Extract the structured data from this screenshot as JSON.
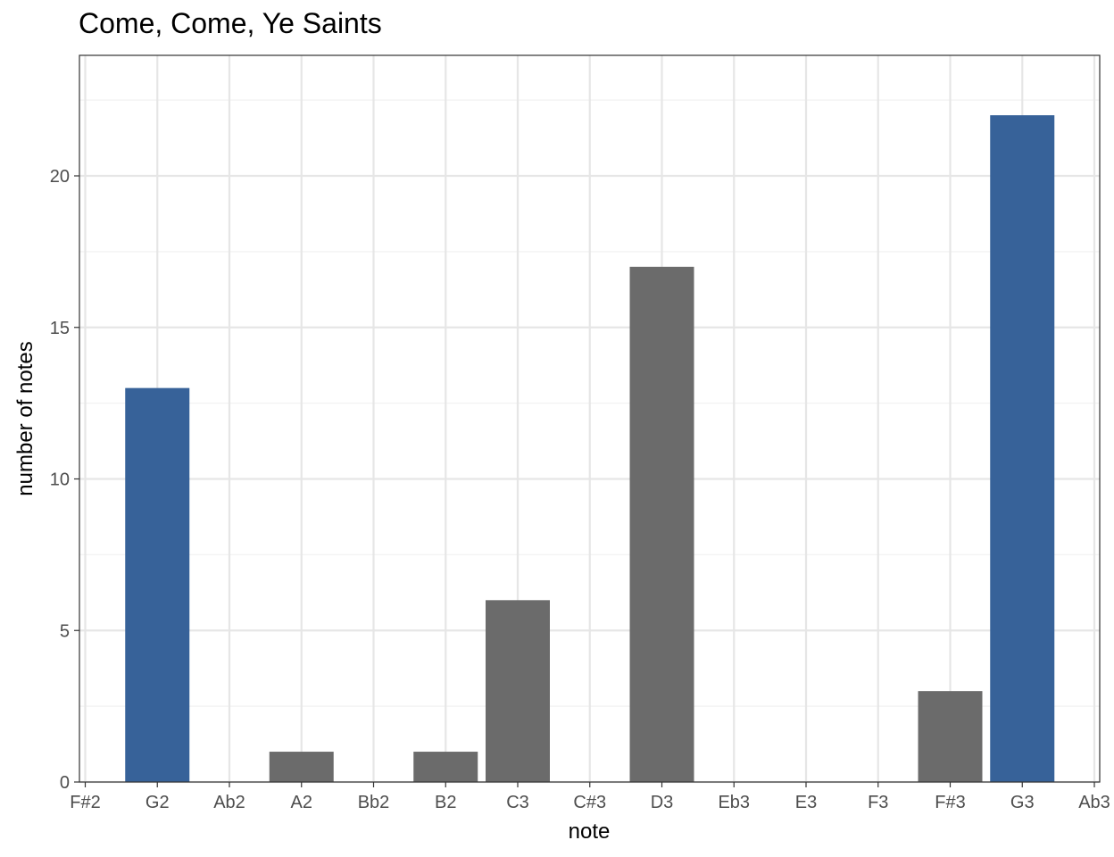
{
  "chart_data": {
    "type": "bar",
    "title": "Come, Come, Ye Saints",
    "xlabel": "note",
    "ylabel": "number of notes",
    "categories": [
      "F#2",
      "G2",
      "Ab2",
      "A2",
      "Bb2",
      "B2",
      "C3",
      "C#3",
      "D3",
      "Eb3",
      "E3",
      "F3",
      "F#3",
      "G3",
      "Ab3"
    ],
    "values": [
      0,
      13,
      0,
      1,
      0,
      1,
      6,
      0,
      17,
      0,
      0,
      0,
      3,
      22,
      0
    ],
    "highlighted": [
      false,
      true,
      false,
      false,
      false,
      false,
      false,
      false,
      false,
      false,
      false,
      false,
      false,
      true,
      false
    ],
    "y_ticks": [
      0,
      5,
      10,
      15,
      20
    ],
    "ylim": [
      0,
      24
    ],
    "grid": true,
    "legend": "none",
    "colors": {
      "bar_default": "#6b6b6b",
      "bar_highlight": "#376299",
      "grid_major": "#e6e6e6",
      "grid_minor": "#f2f2f2",
      "panel_border": "#333333"
    }
  }
}
